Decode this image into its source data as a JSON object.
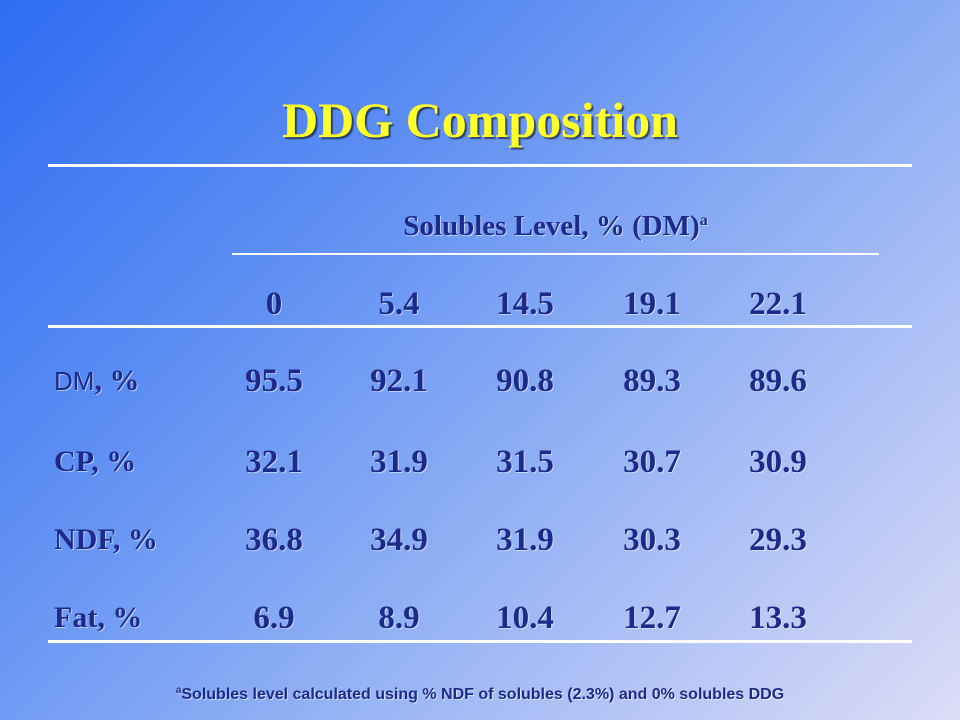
{
  "title": "DDG Composition",
  "solubles_header": {
    "label": "Solubles Level, % (DM)",
    "superscript": "a"
  },
  "columns": [
    "0",
    "5.4",
    "14.5",
    "19.1",
    "22.1"
  ],
  "rows": [
    {
      "label_prefix": "DM",
      "label_suffix": ", %",
      "values": [
        "95.5",
        "92.1",
        "90.8",
        "89.3",
        "89.6"
      ]
    },
    {
      "label": "CP, %",
      "values": [
        "32.1",
        "31.9",
        "31.5",
        "30.7",
        "30.9"
      ]
    },
    {
      "label": "NDF, %",
      "values": [
        "36.8",
        "34.9",
        "31.9",
        "30.3",
        "29.3"
      ]
    },
    {
      "label": "Fat, %",
      "values": [
        "6.9",
        "8.9",
        "10.4",
        "12.7",
        "13.3"
      ]
    }
  ],
  "footnote": {
    "marker": "a",
    "text": "Solubles level calculated using % NDF of solubles (2.3%) and 0% solubles DDG"
  },
  "colors": {
    "title": "#ffff2a",
    "text": "#1e2a8a",
    "rules": "#ffffff"
  }
}
